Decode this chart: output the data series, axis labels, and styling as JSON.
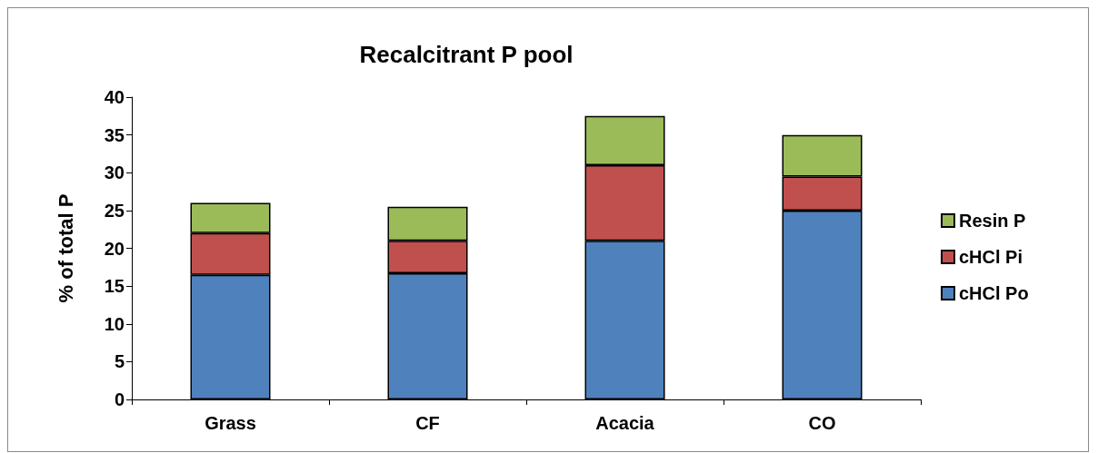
{
  "chart_data": {
    "type": "bar",
    "title": "Recalcitrant P pool",
    "ylabel": "% of total P",
    "categories": [
      "Grass",
      "CF",
      "Acacia",
      "CO"
    ],
    "stacked": true,
    "series": [
      {
        "name": "cHCl Po",
        "color": "#4f81bd",
        "values": [
          16.5,
          16.7,
          21,
          25
        ]
      },
      {
        "name": "cHCl Pi",
        "color": "#c0504d",
        "values": [
          5.5,
          4.3,
          10,
          4.5
        ]
      },
      {
        "name": "Resin P",
        "color": "#9bbb59",
        "values": [
          4,
          4.5,
          6.5,
          5.5
        ]
      }
    ],
    "ylim": [
      0,
      40
    ],
    "yticks": [
      0,
      5,
      10,
      15,
      20,
      25,
      30,
      35,
      40
    ],
    "grid": false,
    "legend": "right"
  }
}
